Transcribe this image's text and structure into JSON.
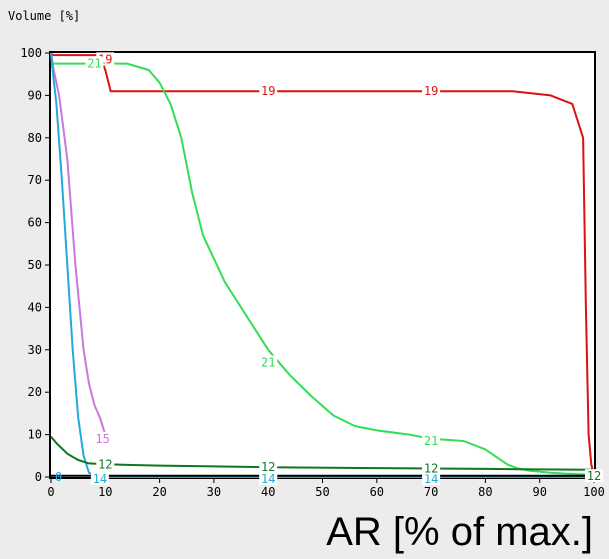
{
  "chart_data": {
    "type": "line",
    "ylabel": "Volume [%]",
    "xlabel": "AR [% of max.]",
    "xlim": [
      0,
      100
    ],
    "ylim": [
      0,
      100
    ],
    "x_ticks": [
      0,
      10,
      20,
      30,
      40,
      50,
      60,
      70,
      80,
      90,
      100
    ],
    "y_ticks": [
      0,
      10,
      20,
      30,
      40,
      50,
      60,
      70,
      80,
      90,
      100
    ],
    "series": [
      {
        "name": "19",
        "color": "#dd1111",
        "x": [
          0,
          0.3,
          9,
          10,
          11,
          20,
          40,
          70,
          85,
          92,
          96,
          98,
          98.5,
          99,
          99.5,
          100
        ],
        "y": [
          100,
          99.5,
          99.5,
          96,
          91,
          91,
          91,
          91,
          91,
          90,
          88,
          80,
          40,
          10,
          3,
          0
        ],
        "labels": [
          {
            "text": "19",
            "x": 10,
            "y": 98.5
          },
          {
            "text": "19",
            "x": 40,
            "y": 91
          },
          {
            "text": "19",
            "x": 70,
            "y": 91
          }
        ]
      },
      {
        "name": "21",
        "color": "#33dd55",
        "x": [
          0,
          0.3,
          5,
          10,
          14,
          18,
          20,
          22,
          24,
          26,
          28,
          32,
          36,
          40,
          44,
          48,
          52,
          56,
          60,
          66,
          70,
          76,
          80,
          84,
          86,
          88,
          92,
          96,
          100
        ],
        "y": [
          100,
          97.5,
          97.5,
          97.5,
          97.5,
          96,
          93,
          88,
          80,
          67,
          57,
          46,
          38,
          30,
          24,
          19,
          14.5,
          12,
          11,
          10,
          9,
          8.5,
          6.5,
          3,
          2,
          1.5,
          1,
          0.7,
          0.5
        ],
        "labels": [
          {
            "text": "21",
            "x": 8,
            "y": 97.5
          },
          {
            "text": "21",
            "x": 40,
            "y": 27
          },
          {
            "text": "21",
            "x": 70,
            "y": 8.5
          }
        ]
      },
      {
        "name": "15",
        "color": "#cc77dd",
        "x": [
          0,
          0.5,
          1.5,
          3,
          4.5,
          6,
          7,
          8,
          9,
          10
        ],
        "y": [
          100,
          96,
          90,
          75,
          50,
          30,
          22,
          17,
          14,
          10
        ],
        "labels": [
          {
            "text": "15",
            "x": 9.5,
            "y": 9
          }
        ]
      },
      {
        "name": "14",
        "color": "#22aadd",
        "x": [
          0,
          0.3,
          1,
          2,
          3,
          4,
          5,
          6,
          7,
          9,
          100
        ],
        "y": [
          100,
          96,
          88,
          70,
          50,
          30,
          14,
          5,
          1,
          0,
          0
        ],
        "labels": [
          {
            "text": "14",
            "x": 9,
            "y": -0.5
          },
          {
            "text": "14",
            "x": 40,
            "y": -0.5
          },
          {
            "text": "14",
            "x": 70,
            "y": -0.5
          }
        ]
      },
      {
        "name": "12",
        "color": "#117722",
        "x": [
          0,
          1,
          3,
          5,
          7,
          10,
          20,
          30,
          40,
          60,
          70,
          80,
          90,
          100
        ],
        "y": [
          9.5,
          8,
          5.5,
          4,
          3.2,
          3,
          2.7,
          2.5,
          2.3,
          2.1,
          2,
          1.9,
          1.8,
          1.7
        ],
        "labels": [
          {
            "text": "12",
            "x": 10,
            "y": 3
          },
          {
            "text": "12",
            "x": 40,
            "y": 2.3
          },
          {
            "text": "12",
            "x": 70,
            "y": 2
          },
          {
            "text": "12",
            "x": 100,
            "y": 0.2
          }
        ]
      },
      {
        "name": "black",
        "color": "#000000",
        "x": [
          0,
          100
        ],
        "y": [
          0.3,
          0.3
        ],
        "labels": []
      }
    ],
    "extra_axis_labels": [
      {
        "text": "0",
        "x": 0,
        "y": 0,
        "color": "#22aadd"
      }
    ]
  }
}
